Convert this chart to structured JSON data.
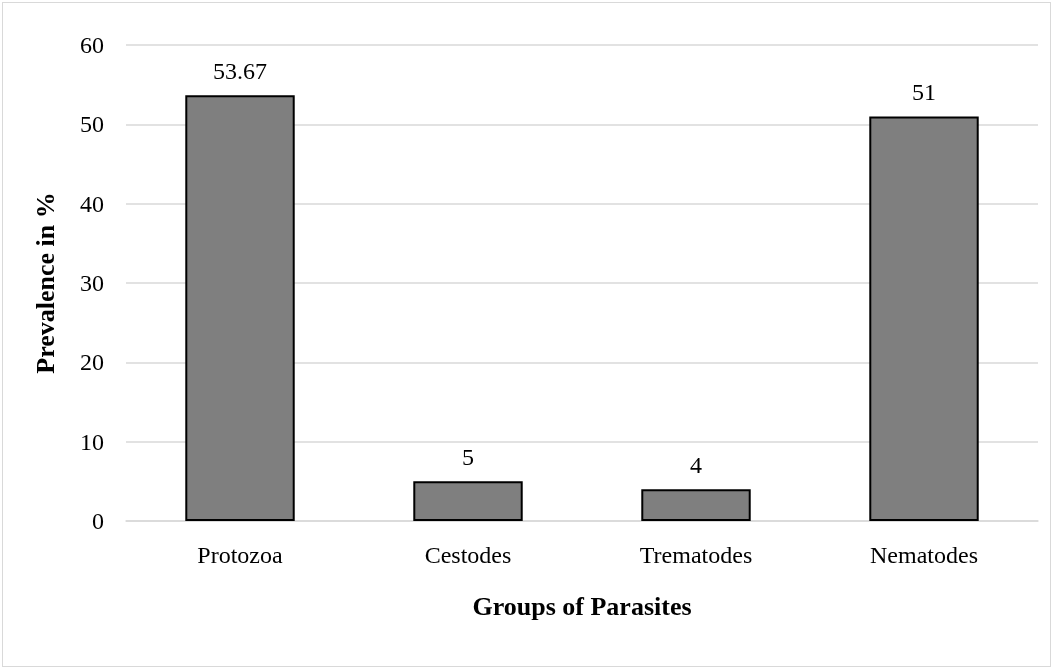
{
  "chart_data": {
    "type": "bar",
    "xlabel": "Groups of Parasites",
    "ylabel": "Prevalence in %",
    "categories": [
      "Protozoa",
      "Cestodes",
      "Trematodes",
      "Nematodes"
    ],
    "values": [
      53.67,
      5,
      4,
      51
    ],
    "color": "#7f7f7f",
    "ylim": [
      0,
      60
    ],
    "yticks": [
      0,
      10,
      20,
      30,
      40,
      50,
      60
    ],
    "grid": "y",
    "data_labels": true
  }
}
